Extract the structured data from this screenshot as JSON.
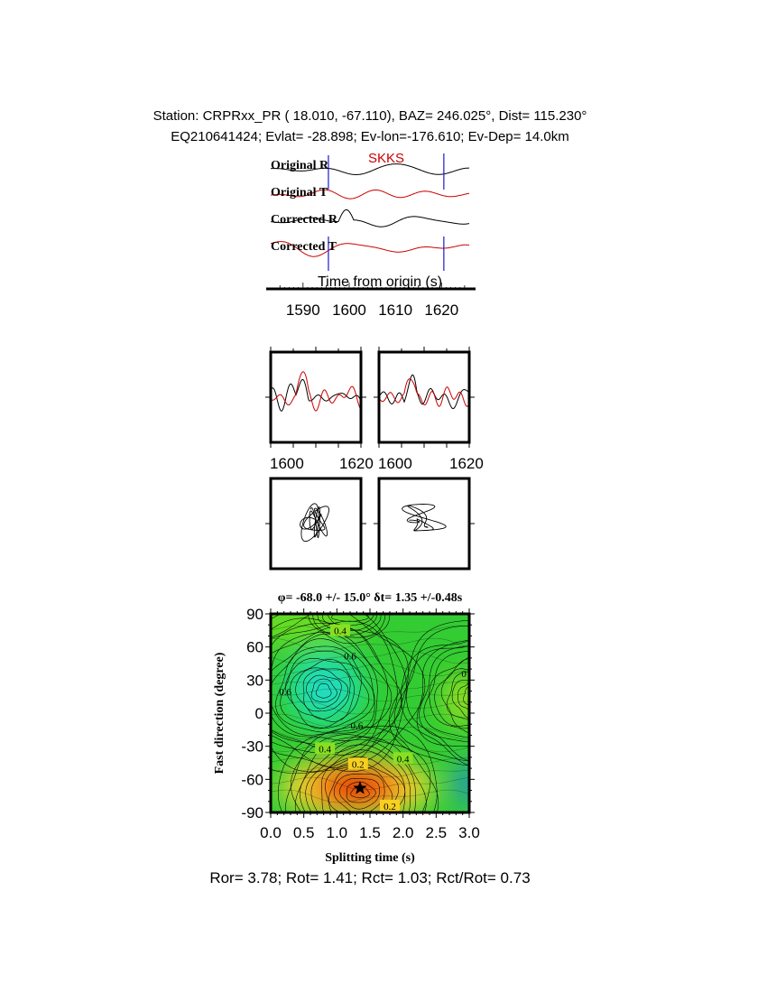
{
  "header": {
    "line1": "Station: CRPRxx_PR (  18.010,  -67.110), BAZ=  246.025°, Dist=  115.230°",
    "line2": "EQ210641424; Evlat= -28.898; Ev-lon=-176.610; Ev-Dep= 14.0km"
  },
  "traces": {
    "phase_label": "SKKS",
    "labels": [
      "Original R",
      "Original T",
      "Corrected R",
      "Corrected T"
    ],
    "xlabel": "Time from origin (s)",
    "ticks": [
      1590,
      1600,
      1610,
      1620
    ],
    "xlim": [
      1583,
      1626
    ],
    "window_markers": [
      1595.5,
      1620.5
    ],
    "phase_time": 1604,
    "colors": {
      "R": "#000000",
      "T": "#cc0000",
      "marker": "#1a1acc"
    }
  },
  "waveform_panels": {
    "ticks": [
      1600,
      1620
    ],
    "xlim": [
      1600,
      1620
    ],
    "tick_labels": [
      "1600",
      "1620",
      "1600",
      "1620"
    ]
  },
  "splitting": {
    "title": "φ= -68.0 +/- 15.0° δt= 1.35 +/-0.48s",
    "phi": -68.0,
    "phi_err": 15.0,
    "dt": 1.35,
    "dt_err": 0.48,
    "xlabel": "Splitting time (s)",
    "ylabel": "Fast direction (degree)",
    "xlim": [
      0,
      3
    ],
    "ylim": [
      -90,
      90
    ],
    "xticks": [
      "0.0",
      "0.5",
      "1.0",
      "1.5",
      "2.0",
      "2.5",
      "3.0"
    ],
    "yticks": [
      "90",
      "60",
      "30",
      "0",
      "-30",
      "-60",
      "-90"
    ],
    "contour_labels": [
      {
        "text": "0.4",
        "x": 1.05,
        "y": 74
      },
      {
        "text": "0.6",
        "x": 1.2,
        "y": 51
      },
      {
        "text": "0.6",
        "x": 0.22,
        "y": 19
      },
      {
        "text": "0.6",
        "x": 1.3,
        "y": -12
      },
      {
        "text": "0.4",
        "x": 0.82,
        "y": -33
      },
      {
        "text": "0.2",
        "x": 1.32,
        "y": -47
      },
      {
        "text": "0.4",
        "x": 2.0,
        "y": -42
      },
      {
        "text": "0.2",
        "x": 1.8,
        "y": -85
      },
      {
        "text": "0",
        "x": 2.92,
        "y": 35
      }
    ]
  },
  "footer": "Ror= 3.78; Rot= 1.41; Rct= 1.03; Rct/Rot= 0.73",
  "chart_data": [
    {
      "type": "line",
      "title": "",
      "xlabel": "Time from origin (s)",
      "ylabel": "",
      "series": [
        {
          "name": "Original R"
        },
        {
          "name": "Original T"
        },
        {
          "name": "Corrected R"
        },
        {
          "name": "Corrected T"
        }
      ],
      "annotations": [
        "SKKS"
      ],
      "xlim": [
        1583,
        1626
      ]
    },
    {
      "type": "heatmap",
      "title": "φ= -68.0 +/- 15.0° δt= 1.35 +/-0.48s",
      "xlabel": "Splitting time (s)",
      "ylabel": "Fast direction (degree)",
      "xlim": [
        0,
        3
      ],
      "ylim": [
        -90,
        90
      ],
      "best_fit": {
        "x": 1.35,
        "y": -68.0
      }
    }
  ]
}
